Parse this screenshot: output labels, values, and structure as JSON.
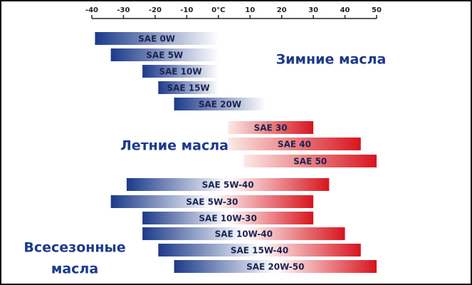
{
  "chart_data": {
    "type": "range-bar",
    "xlim": [
      -40,
      50
    ],
    "xticks": [
      -40,
      -30,
      -20,
      -10,
      {
        "value": 0,
        "label": "0°C"
      },
      10,
      20,
      30,
      40,
      50
    ],
    "series": [
      {
        "name": [
          "Зимние масла"
        ],
        "colors": [
          "#1c3a8a",
          "#ffffff"
        ],
        "bars": [
          {
            "label": "SAE 0W",
            "min": -39,
            "max": 0
          },
          {
            "label": "SAE 5W",
            "min": -34,
            "max": 0
          },
          {
            "label": "SAE 10W",
            "min": -24,
            "max": 0
          },
          {
            "label": "SAE 15W",
            "min": -19,
            "max": 0
          },
          {
            "label": "SAE 20W",
            "min": -14,
            "max": 15
          }
        ]
      },
      {
        "name": [
          "Летние масла"
        ],
        "colors": [
          "#fbeae6",
          "#d8141e"
        ],
        "bars": [
          {
            "label": "SAE 30",
            "min": 3,
            "max": 30
          },
          {
            "label": "SAE 40",
            "min": 3,
            "max": 45
          },
          {
            "label": "SAE 50",
            "min": 8,
            "max": 50
          }
        ]
      },
      {
        "name": [
          "Всесезонные",
          "масла"
        ],
        "colors": [
          "#1c3a8a",
          "#ffffff",
          "#d8141e"
        ],
        "bars": [
          {
            "label": "SAE 5W-40",
            "min": -29,
            "max": 35
          },
          {
            "label": "SAE 5W-30",
            "min": -34,
            "max": 30
          },
          {
            "label": "SAE 10W-30",
            "min": -24,
            "max": 30
          },
          {
            "label": "SAE 10W-40",
            "min": -24,
            "max": 40
          },
          {
            "label": "SAE 15W-40",
            "min": -19,
            "max": 45
          },
          {
            "label": "SAE 20W-50",
            "min": -14,
            "max": 50
          }
        ]
      }
    ]
  }
}
